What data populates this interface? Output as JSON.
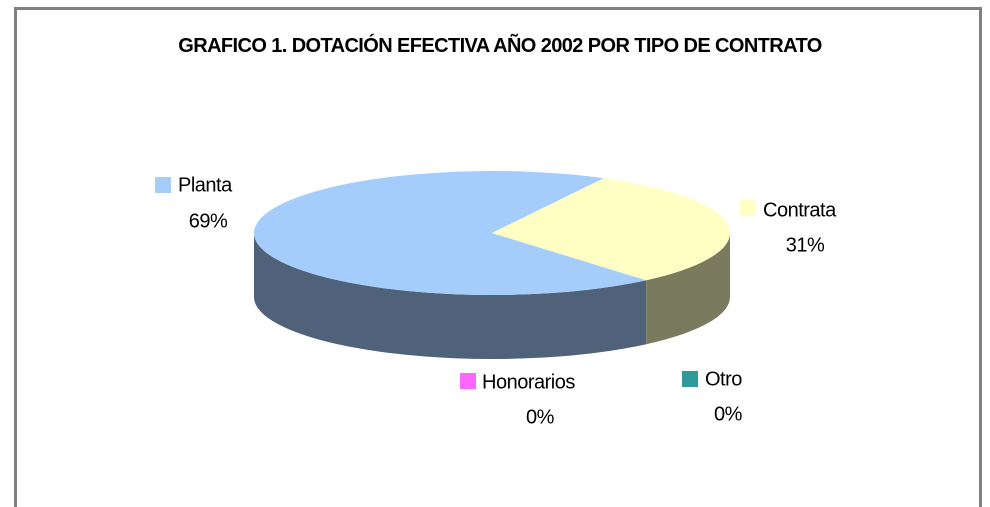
{
  "chart_data": {
    "type": "pie",
    "title": "GRAFICO 1. DOTACIÓN EFECTIVA AÑO 2002 POR TIPO DE CONTRATO",
    "categories": [
      "Planta",
      "Contrata",
      "Honorarios",
      "Otro"
    ],
    "values": [
      69,
      31,
      0,
      0
    ],
    "value_labels": [
      "69%",
      "31%",
      "0%",
      "0%"
    ],
    "colors": [
      "#a4cdfc",
      "#ffffc4",
      "#ff66ff",
      "#2f9a9a"
    ]
  }
}
